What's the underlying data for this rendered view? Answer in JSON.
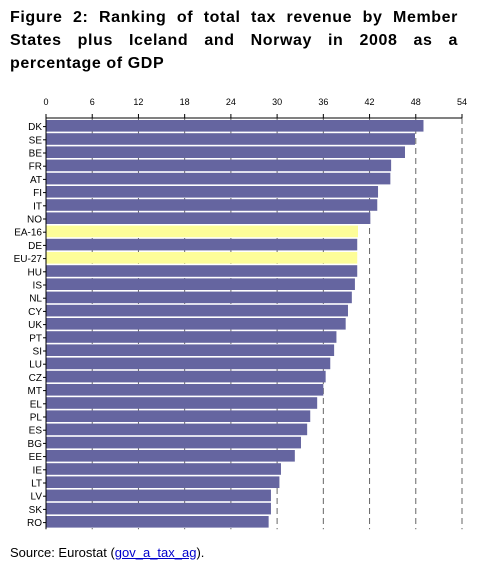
{
  "title": "Figure 2: Ranking of total tax revenue by Member States plus Iceland and Norway in 2008 as a percentage of GDP",
  "source": {
    "prefix": "Source: Eurostat (",
    "link_text": "gov_a_tax_ag",
    "suffix": ")."
  },
  "chart_data": {
    "type": "bar",
    "orientation": "horizontal",
    "title": "Figure 2: Ranking of total tax revenue by Member States plus Iceland and Norway in 2008 as a percentage of GDP",
    "xlabel": "",
    "ylabel": "",
    "xlim": [
      0,
      54
    ],
    "xticks": [
      0,
      6,
      12,
      18,
      24,
      30,
      36,
      42,
      48,
      54
    ],
    "x_axis_position": "top",
    "grid": "vertical dashed gridlines",
    "categories": [
      "DK",
      "SE",
      "BE",
      "FR",
      "AT",
      "FI",
      "IT",
      "NO",
      "EA-16",
      "DE",
      "EU-27",
      "HU",
      "IS",
      "NL",
      "CY",
      "UK",
      "PT",
      "SI",
      "LU",
      "CZ",
      "MT",
      "EL",
      "PL",
      "ES",
      "BG",
      "EE",
      "IE",
      "LT",
      "LV",
      "SK",
      "RO"
    ],
    "values": [
      49.0,
      47.9,
      46.6,
      44.8,
      44.7,
      43.1,
      43.0,
      42.1,
      40.5,
      40.4,
      40.4,
      40.4,
      40.1,
      39.7,
      39.2,
      38.9,
      37.7,
      37.4,
      36.9,
      36.3,
      36.0,
      35.2,
      34.3,
      33.9,
      33.1,
      32.3,
      30.5,
      30.3,
      29.2,
      29.2,
      28.9
    ],
    "highlighted_categories": [
      "EA-16",
      "EU-27"
    ],
    "colors": {
      "bar": "#6565a0",
      "highlight": "#fdfd99",
      "grid": "#666666"
    }
  }
}
